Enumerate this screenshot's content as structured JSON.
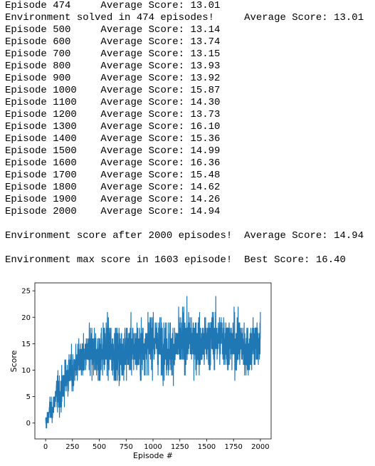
{
  "console": {
    "lines": [
      "Episode 474\tAverage Score: 13.01",
      "Environment solved in 474 episodes!\tAverage Score: 13.01",
      "Episode 500\tAverage Score: 13.14",
      "Episode 600\tAverage Score: 13.74",
      "Episode 700\tAverage Score: 13.15",
      "Episode 800\tAverage Score: 13.93",
      "Episode 900\tAverage Score: 13.92",
      "Episode 1000\tAverage Score: 15.87",
      "Episode 1100\tAverage Score: 14.30",
      "Episode 1200\tAverage Score: 13.73",
      "Episode 1300\tAverage Score: 16.10",
      "Episode 1400\tAverage Score: 15.36",
      "Episode 1500\tAverage Score: 14.99",
      "Episode 1600\tAverage Score: 16.36",
      "Episode 1700\tAverage Score: 15.48",
      "Episode 1800\tAverage Score: 14.62",
      "Episode 1900\tAverage Score: 14.26",
      "Episode 2000\tAverage Score: 14.94"
    ],
    "summary_line": "Environment score after 2000 episodes!\tAverage Score: 14.94",
    "max_line": "Environment max score in 1603 episode!\tBest Score: 16.40"
  },
  "chart_data": {
    "type": "line",
    "title": "",
    "xlabel": "Episode #",
    "ylabel": "Score",
    "xlim": [
      -100,
      2100
    ],
    "ylim": [
      -3,
      26.5
    ],
    "xticks": [
      0,
      250,
      500,
      750,
      1000,
      1250,
      1500,
      1750,
      2000
    ],
    "yticks": [
      0,
      5,
      10,
      15,
      20,
      25
    ],
    "grid": false,
    "color": "#1f77b4",
    "series": [
      {
        "name": "",
        "points": [
          [
            0,
            0
          ],
          [
            20,
            1
          ],
          [
            40,
            3
          ],
          [
            60,
            2
          ],
          [
            80,
            4
          ],
          [
            100,
            5
          ],
          [
            120,
            6
          ],
          [
            140,
            5
          ],
          [
            160,
            7
          ],
          [
            180,
            8
          ],
          [
            200,
            9
          ],
          [
            220,
            9
          ],
          [
            240,
            10
          ],
          [
            260,
            10
          ],
          [
            280,
            11
          ],
          [
            300,
            11
          ],
          [
            320,
            12
          ],
          [
            340,
            12
          ],
          [
            360,
            12
          ],
          [
            380,
            13
          ],
          [
            400,
            13
          ],
          [
            420,
            13
          ],
          [
            440,
            13
          ],
          [
            460,
            13
          ],
          [
            480,
            13
          ],
          [
            500,
            13
          ],
          [
            550,
            14
          ],
          [
            600,
            14
          ],
          [
            650,
            13
          ],
          [
            700,
            13
          ],
          [
            750,
            14
          ],
          [
            800,
            14
          ],
          [
            850,
            14
          ],
          [
            900,
            14
          ],
          [
            950,
            15
          ],
          [
            1000,
            16
          ],
          [
            1050,
            15
          ],
          [
            1100,
            14
          ],
          [
            1150,
            14
          ],
          [
            1200,
            14
          ],
          [
            1250,
            15
          ],
          [
            1300,
            16
          ],
          [
            1350,
            16
          ],
          [
            1400,
            15
          ],
          [
            1450,
            15
          ],
          [
            1500,
            15
          ],
          [
            1550,
            16
          ],
          [
            1600,
            16
          ],
          [
            1650,
            16
          ],
          [
            1700,
            15
          ],
          [
            1750,
            15
          ],
          [
            1800,
            15
          ],
          [
            1850,
            14
          ],
          [
            1900,
            14
          ],
          [
            1950,
            15
          ],
          [
            2000,
            15
          ]
        ]
      }
    ],
    "noise_range_min": -2,
    "noise_range_max": 26
  }
}
